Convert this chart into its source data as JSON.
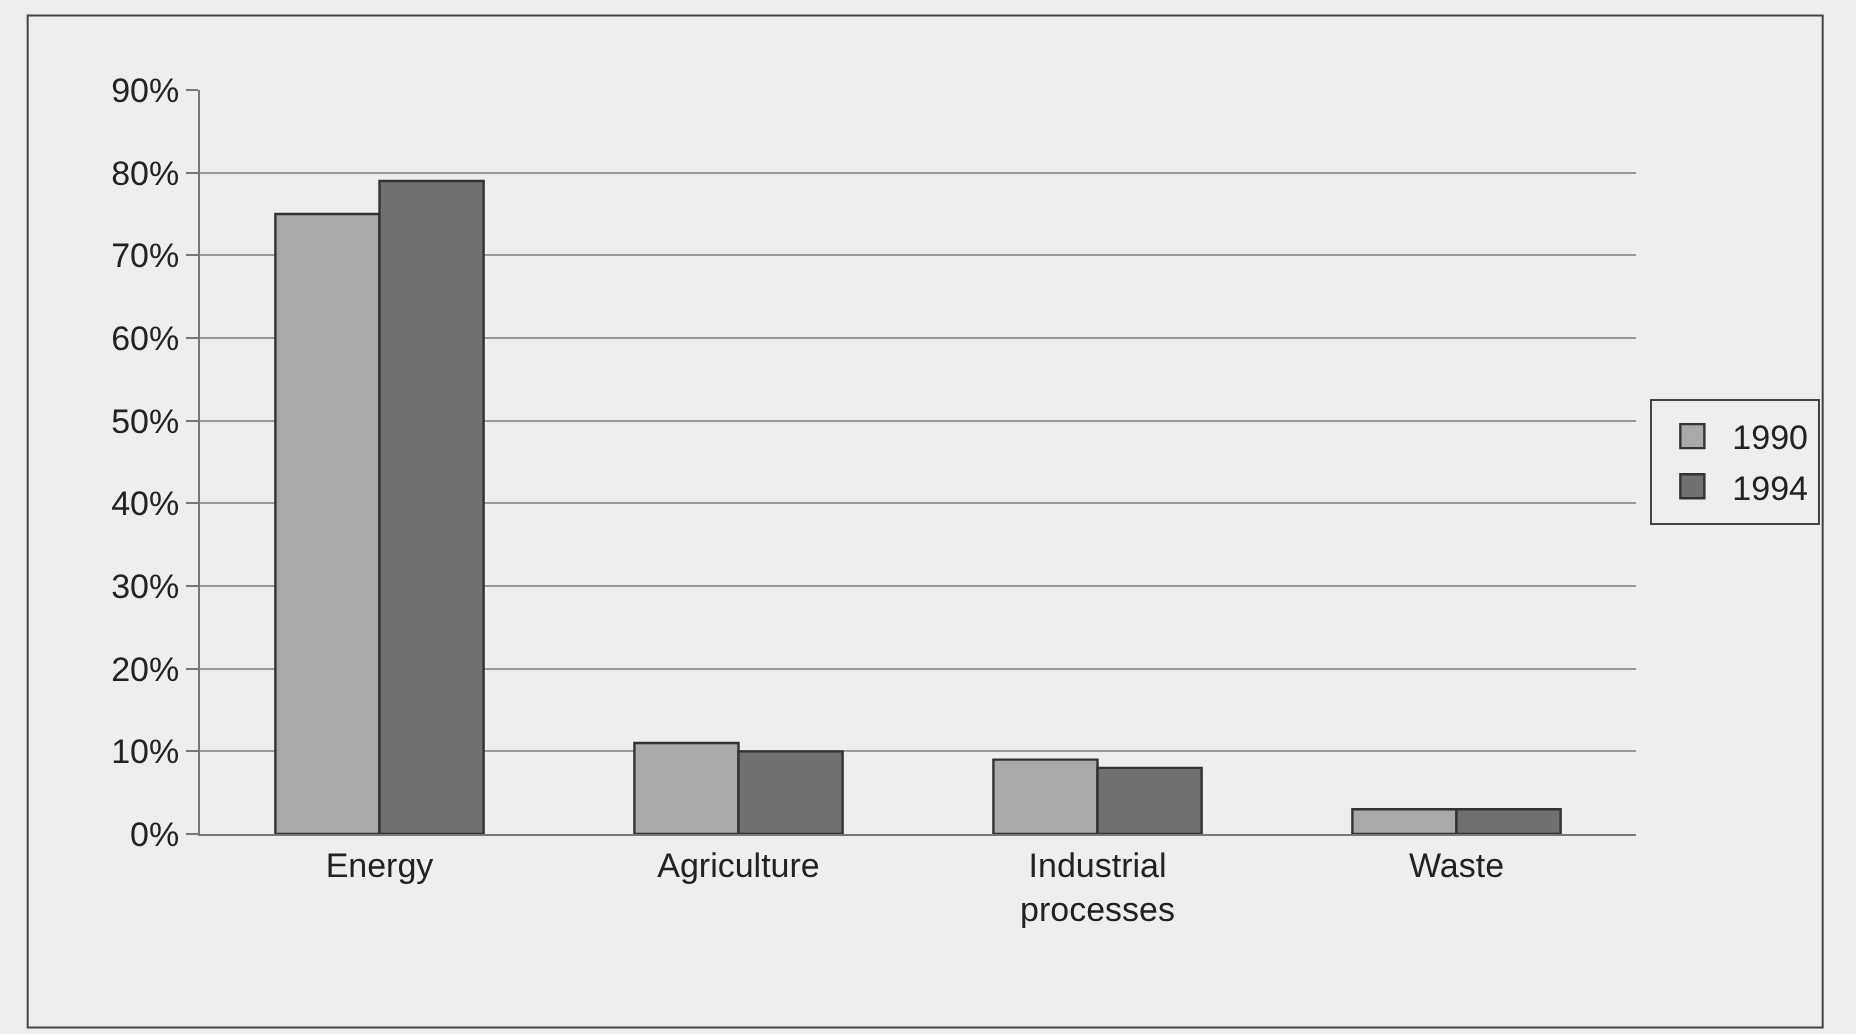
{
  "chart_data": {
    "type": "bar",
    "categories": [
      "Energy",
      "Agriculture",
      "Industrial processes",
      "Waste"
    ],
    "series": [
      {
        "name": "1990",
        "color": "#a9a9a9",
        "values": [
          75,
          11,
          9,
          3
        ]
      },
      {
        "name": "1994",
        "color": "#707070",
        "values": [
          79,
          10,
          8,
          3
        ]
      }
    ],
    "ylim": [
      0,
      90
    ],
    "yticks": [
      {
        "value": 0,
        "label": "0%"
      },
      {
        "value": 10,
        "label": "10%"
      },
      {
        "value": 20,
        "label": "20%"
      },
      {
        "value": 30,
        "label": "30%"
      },
      {
        "value": 40,
        "label": "40%"
      },
      {
        "value": 50,
        "label": "50%"
      },
      {
        "value": 60,
        "label": "60%"
      },
      {
        "value": 70,
        "label": "70%"
      },
      {
        "value": 80,
        "label": "80%"
      },
      {
        "value": 90,
        "label": "90%"
      }
    ],
    "grid": "y",
    "legend": "right"
  }
}
